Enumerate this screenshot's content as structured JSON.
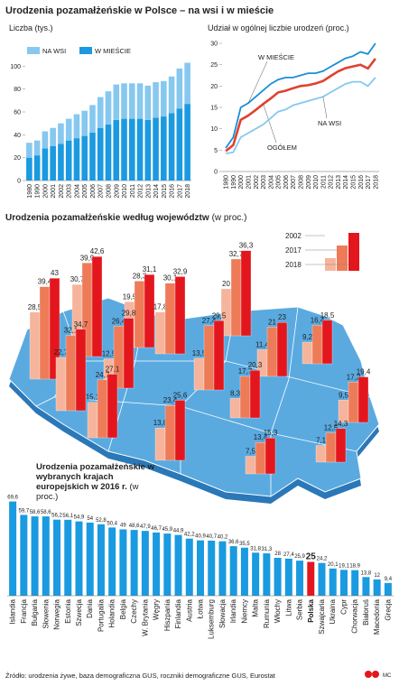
{
  "title": "Urodzenia pozamałżeńskie w Polsce – na wsi i w mieście",
  "chart_data": [
    {
      "type": "stacked_bar",
      "title": "Liczba (tys.)",
      "categories": [
        "1980",
        "1990",
        "2000",
        "2001",
        "2002",
        "2003",
        "2004",
        "2005",
        "2006",
        "2007",
        "2008",
        "2009",
        "2010",
        "2011",
        "2012",
        "2013",
        "2014",
        "2015",
        "2016",
        "2017",
        "2018"
      ],
      "series": [
        {
          "name": "NA WSI",
          "color": "#86c8ef",
          "values": [
            13,
            13,
            15,
            16,
            18,
            19,
            21,
            22,
            24,
            27,
            29,
            31,
            31,
            31,
            31,
            30,
            31,
            31,
            32,
            35,
            36
          ]
        },
        {
          "name": "W MIEŚCIE",
          "color": "#1a9ae0",
          "values": [
            20,
            22,
            28,
            30,
            32,
            35,
            37,
            39,
            42,
            46,
            49,
            53,
            54,
            54,
            54,
            53,
            55,
            56,
            59,
            63,
            67
          ]
        }
      ],
      "ylim": [
        0,
        105
      ],
      "yticks": [
        0,
        20,
        40,
        60,
        80,
        100
      ],
      "grid": false
    },
    {
      "type": "line",
      "title": "Udział w ogólnej liczbie urodzeń (proc.)",
      "categories": [
        "1980",
        "1990",
        "2000",
        "2001",
        "2002",
        "2003",
        "2004",
        "2005",
        "2006",
        "2007",
        "2008",
        "2009",
        "2010",
        "2011",
        "2012",
        "2013",
        "2014",
        "2015",
        "2016",
        "2017",
        "2018"
      ],
      "series": [
        {
          "name": "W MIEŚCIE",
          "color": "#1a8fd8",
          "values": [
            5.5,
            8,
            15,
            16,
            17.5,
            19,
            20.5,
            21.5,
            22,
            22,
            22.5,
            23,
            23,
            23.5,
            24.5,
            25.5,
            26.5,
            27,
            28,
            27.5,
            30
          ]
        },
        {
          "name": "OGÓŁEM",
          "color": "#e0412f",
          "values": [
            4.8,
            6.2,
            12.1,
            13.1,
            14.4,
            15.8,
            17.1,
            18.5,
            18.9,
            19.5,
            20,
            20.2,
            20.6,
            21.2,
            22.3,
            23.4,
            24.2,
            24.6,
            25,
            24.1,
            26.4
          ]
        },
        {
          "name": "NA WSI",
          "color": "#86c8ef",
          "values": [
            4.2,
            4.5,
            8,
            9,
            10,
            11,
            12.5,
            14,
            14.5,
            15.5,
            16,
            16.5,
            17,
            17.5,
            18.5,
            19.5,
            20.5,
            21,
            21,
            20,
            22
          ]
        }
      ],
      "ylim": [
        0,
        30
      ],
      "yticks": [
        0,
        5,
        10,
        15,
        20,
        25,
        30
      ],
      "grid": false
    },
    {
      "type": "map_bars",
      "title": "Urodzenia pozamałżeńskie według województw",
      "subtitle": "(w proc.)",
      "categories": [
        null,
        null,
        null,
        null,
        null,
        null,
        null,
        null,
        null,
        null,
        null,
        null,
        null,
        null,
        null,
        null
      ],
      "series": [
        {
          "name": "2002",
          "color": "#f6b49c",
          "values": [
            28.5,
            30.7,
            19.5,
            17.8,
            20,
            22.7,
            12.5,
            15.1,
            13.5,
            11.4,
            9.2,
            13.8,
            8.3,
            7.5,
            7.1,
            9.5
          ],
          "value_labels": [
            "28,5",
            "30,7",
            "19,5",
            "17,8",
            "20",
            "22,7",
            "12,5",
            "15,1",
            "13,5",
            "11,4",
            "9,2",
            "13,8",
            "8,3",
            "7,5",
            "7,1",
            "9,5"
          ]
        },
        {
          "name": "2017",
          "color": "#ee7b58",
          "values": [
            39.4,
            39.9,
            28.3,
            30.1,
            32.7,
            32.1,
            26.4,
            24.7,
            27.4,
            21,
            16.4,
            23.4,
            17.7,
            13.4,
            12.5,
            17.2
          ],
          "value_labels": [
            "39,4",
            "39,9",
            "28,3",
            "30,1",
            "32,7",
            "32,1",
            "26,4",
            "24,7",
            "27,4",
            "21",
            "16,4",
            "23,4",
            "17,7",
            "13,4",
            "12,5",
            "17,2"
          ]
        },
        {
          "name": "2018",
          "color": "#e3161e",
          "values": [
            43,
            42.6,
            31.1,
            32.9,
            36.3,
            34.7,
            29.8,
            27.1,
            29.5,
            23,
            18.5,
            25.6,
            20.3,
            15.3,
            14.3,
            19.4
          ],
          "value_labels": [
            "43",
            "42,6",
            "31,1",
            "32,9",
            "36,3",
            "34,7",
            "29,8",
            "27,1",
            "29,5",
            "23",
            "18,5",
            "25,6",
            "20,3",
            "15,3",
            "14,3",
            "19,4"
          ]
        }
      ]
    },
    {
      "type": "bar",
      "title": "Urodzenia pozamałżeńskie w wybranych krajach europejskich w 2016 r.",
      "subtitle": "(w proc.)",
      "categories": [
        "Islandia",
        "Francja",
        "Bułgaria",
        "Słowenia",
        "Norwegia",
        "Estonia",
        "Szwecja",
        "Dania",
        "Portugalia",
        "Holandia",
        "Belgia",
        "Czechy",
        "W. Brytania",
        "Węgry",
        "Hiszpania",
        "Finlandia",
        "Austria",
        "Łotwa",
        "Luksemburg",
        "Słowacja",
        "Irlandia",
        "Niemcy",
        "Malta",
        "Rumunia",
        "Włochy",
        "Litwa",
        "Serbia",
        "Polska",
        "Szwajcaria",
        "Ukraina",
        "Cypr",
        "Chorwacja",
        "Białoruś",
        "Macedonia",
        "Grecja"
      ],
      "values": [
        69.6,
        59.7,
        58.6,
        58.6,
        56.2,
        56.1,
        54.9,
        54,
        52.8,
        50.4,
        49,
        48.6,
        47.9,
        46.7,
        45.9,
        44.9,
        42.2,
        40.9,
        40.7,
        40.2,
        36.6,
        35.5,
        31.8,
        31.3,
        28,
        27.4,
        25.9,
        25,
        24.2,
        20.1,
        19.1,
        18.9,
        13.8,
        12,
        9.4
      ],
      "value_labels": [
        "69,6",
        "59,7",
        "58,6",
        "58,6",
        "56,2",
        "56,1",
        "54,9",
        "54",
        "52,8",
        "50,4",
        "49",
        "48,6",
        "47,9",
        "46,7",
        "45,9",
        "44,9",
        "42,2",
        "40,9",
        "40,7",
        "40,2",
        "36,6",
        "35,5",
        "31,8",
        "31,3",
        "28",
        "27,4",
        "25,9",
        "25",
        "24,2",
        "20,1",
        "19,1",
        "18,9",
        "13,8",
        "12",
        "9,4"
      ],
      "colors": [
        "#1a9ae0",
        "#1a9ae0",
        "#1a9ae0",
        "#1a9ae0",
        "#1a9ae0",
        "#1a9ae0",
        "#1a9ae0",
        "#1a9ae0",
        "#1a9ae0",
        "#1a9ae0",
        "#1a9ae0",
        "#1a9ae0",
        "#1a9ae0",
        "#1a9ae0",
        "#1a9ae0",
        "#1a9ae0",
        "#1a9ae0",
        "#1a9ae0",
        "#1a9ae0",
        "#1a9ae0",
        "#1a9ae0",
        "#1a9ae0",
        "#1a9ae0",
        "#1a9ae0",
        "#1a9ae0",
        "#1a9ae0",
        "#1a9ae0",
        "#e3161e",
        "#1a9ae0",
        "#1a9ae0",
        "#1a9ae0",
        "#1a9ae0",
        "#1a9ae0",
        "#1a9ae0",
        "#1a9ae0"
      ]
    }
  ],
  "source": "Źródło: urodzenia żywe, baza demograficzna GUS, roczniki demograficzne GUS, Eurostat",
  "credit": "MC"
}
